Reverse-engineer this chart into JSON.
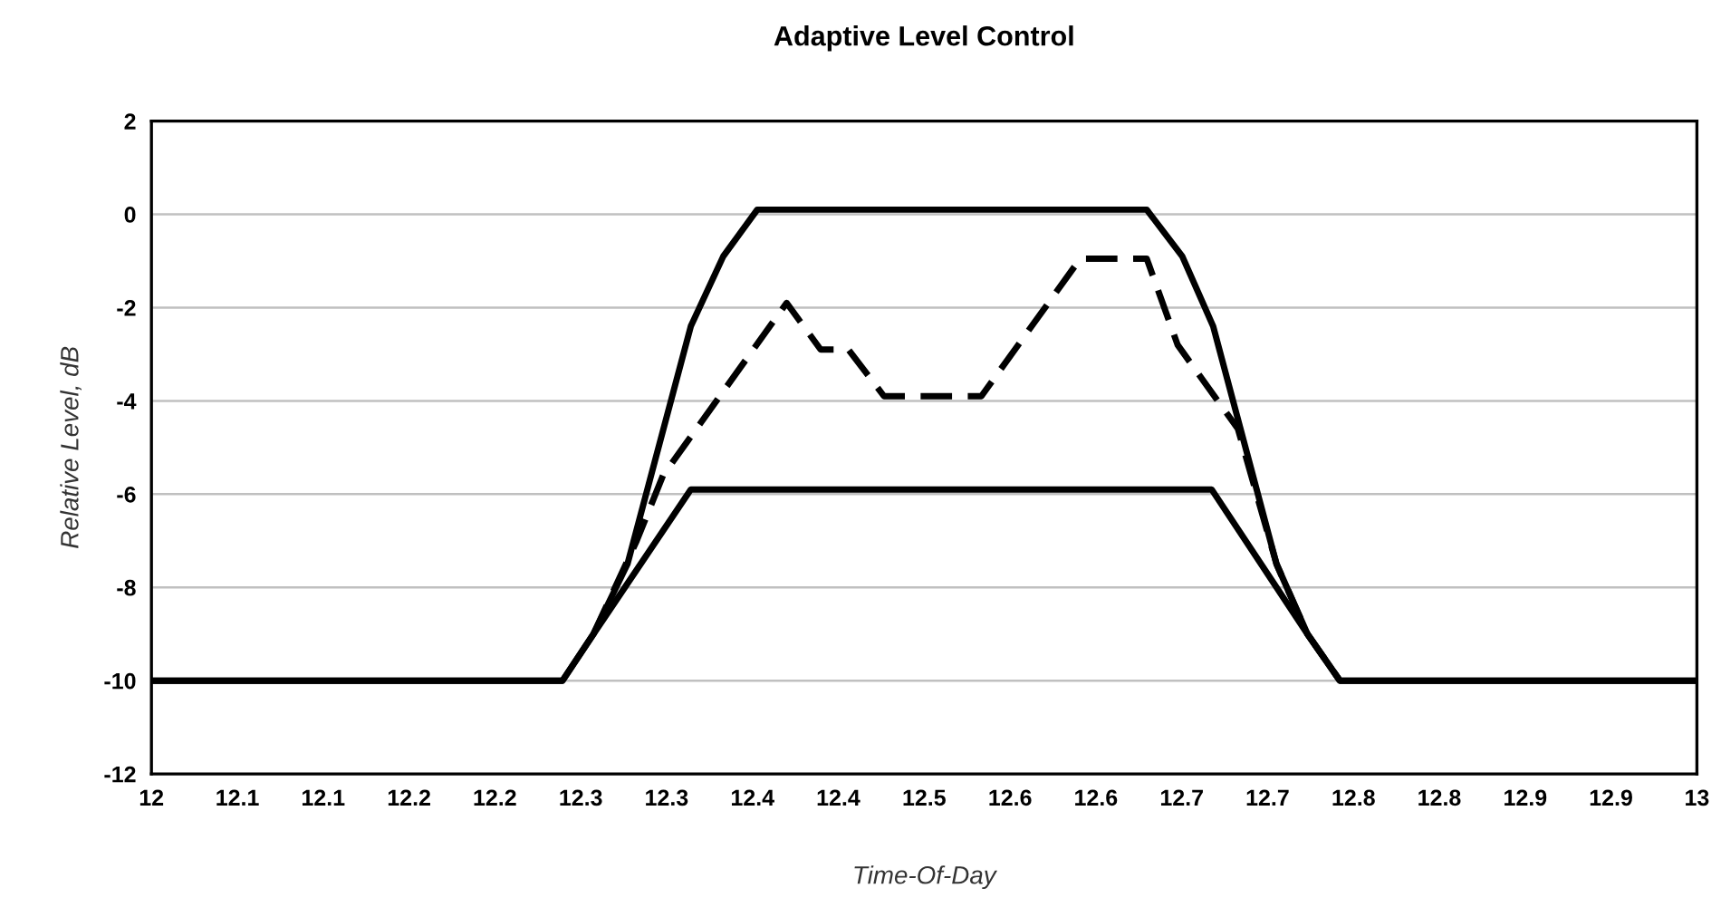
{
  "chart_data": {
    "type": "line",
    "title": "Adaptive Level Control",
    "xlabel": "Time-Of-Day",
    "ylabel": "Relative Level, dB",
    "xlim": [
      12,
      13
    ],
    "ylim": [
      -12,
      2
    ],
    "xticks": [
      12,
      {
        "value": 12.0556,
        "label": "12.1"
      },
      {
        "value": 12.1111,
        "label": "12.1"
      },
      {
        "value": 12.1667,
        "label": "12.2"
      },
      {
        "value": 12.2222,
        "label": "12.2"
      },
      {
        "value": 12.2778,
        "label": "12.3"
      },
      {
        "value": 12.3333,
        "label": "12.3"
      },
      {
        "value": 12.3889,
        "label": "12.4"
      },
      {
        "value": 12.4444,
        "label": "12.4"
      },
      12.5,
      {
        "value": 12.5556,
        "label": "12.6"
      },
      {
        "value": 12.6111,
        "label": "12.6"
      },
      {
        "value": 12.6667,
        "label": "12.7"
      },
      {
        "value": 12.7222,
        "label": "12.7"
      },
      {
        "value": 12.7778,
        "label": "12.8"
      },
      {
        "value": 12.8333,
        "label": "12.8"
      },
      {
        "value": 12.8889,
        "label": "12.9"
      },
      {
        "value": 12.9444,
        "label": "12.9"
      },
      13
    ],
    "yticks": [
      -12,
      -10,
      -8,
      -6,
      -4,
      -2,
      0,
      2
    ],
    "grid": "y",
    "legend": false,
    "marker": "none",
    "series": [
      {
        "color": "#000000",
        "line_style": "solid",
        "x": [
          12,
          12.266,
          12.286,
          12.308,
          12.349,
          12.37,
          12.392,
          12.644,
          12.667,
          12.687,
          12.728,
          12.748,
          12.769,
          13
        ],
        "values": [
          -10,
          -10,
          -9,
          -7.5,
          -2.4,
          -0.9,
          0.1,
          0.1,
          -0.9,
          -2.4,
          -7.5,
          -9,
          -10,
          -10
        ]
      },
      {
        "color": "#000000",
        "line_style": "solid",
        "x": [
          12,
          12.266,
          12.286,
          12.349,
          12.686,
          12.748,
          12.769,
          13
        ],
        "values": [
          -10,
          -10,
          -9,
          -5.9,
          -5.9,
          -9,
          -10,
          -10
        ]
      },
      {
        "color": "#000000",
        "line_style": "dashed",
        "x": [
          12.286,
          12.314,
          12.331,
          12.411,
          12.433,
          12.451,
          12.474,
          12.537,
          12.601,
          12.644,
          12.664,
          12.703,
          12.728,
          12.748,
          12.769
        ],
        "values": [
          -9,
          -7,
          -5.6,
          -1.9,
          -2.9,
          -2.9,
          -3.9,
          -3.9,
          -0.95,
          -0.95,
          -2.8,
          -4.6,
          -7.5,
          -9,
          -10
        ]
      }
    ]
  }
}
